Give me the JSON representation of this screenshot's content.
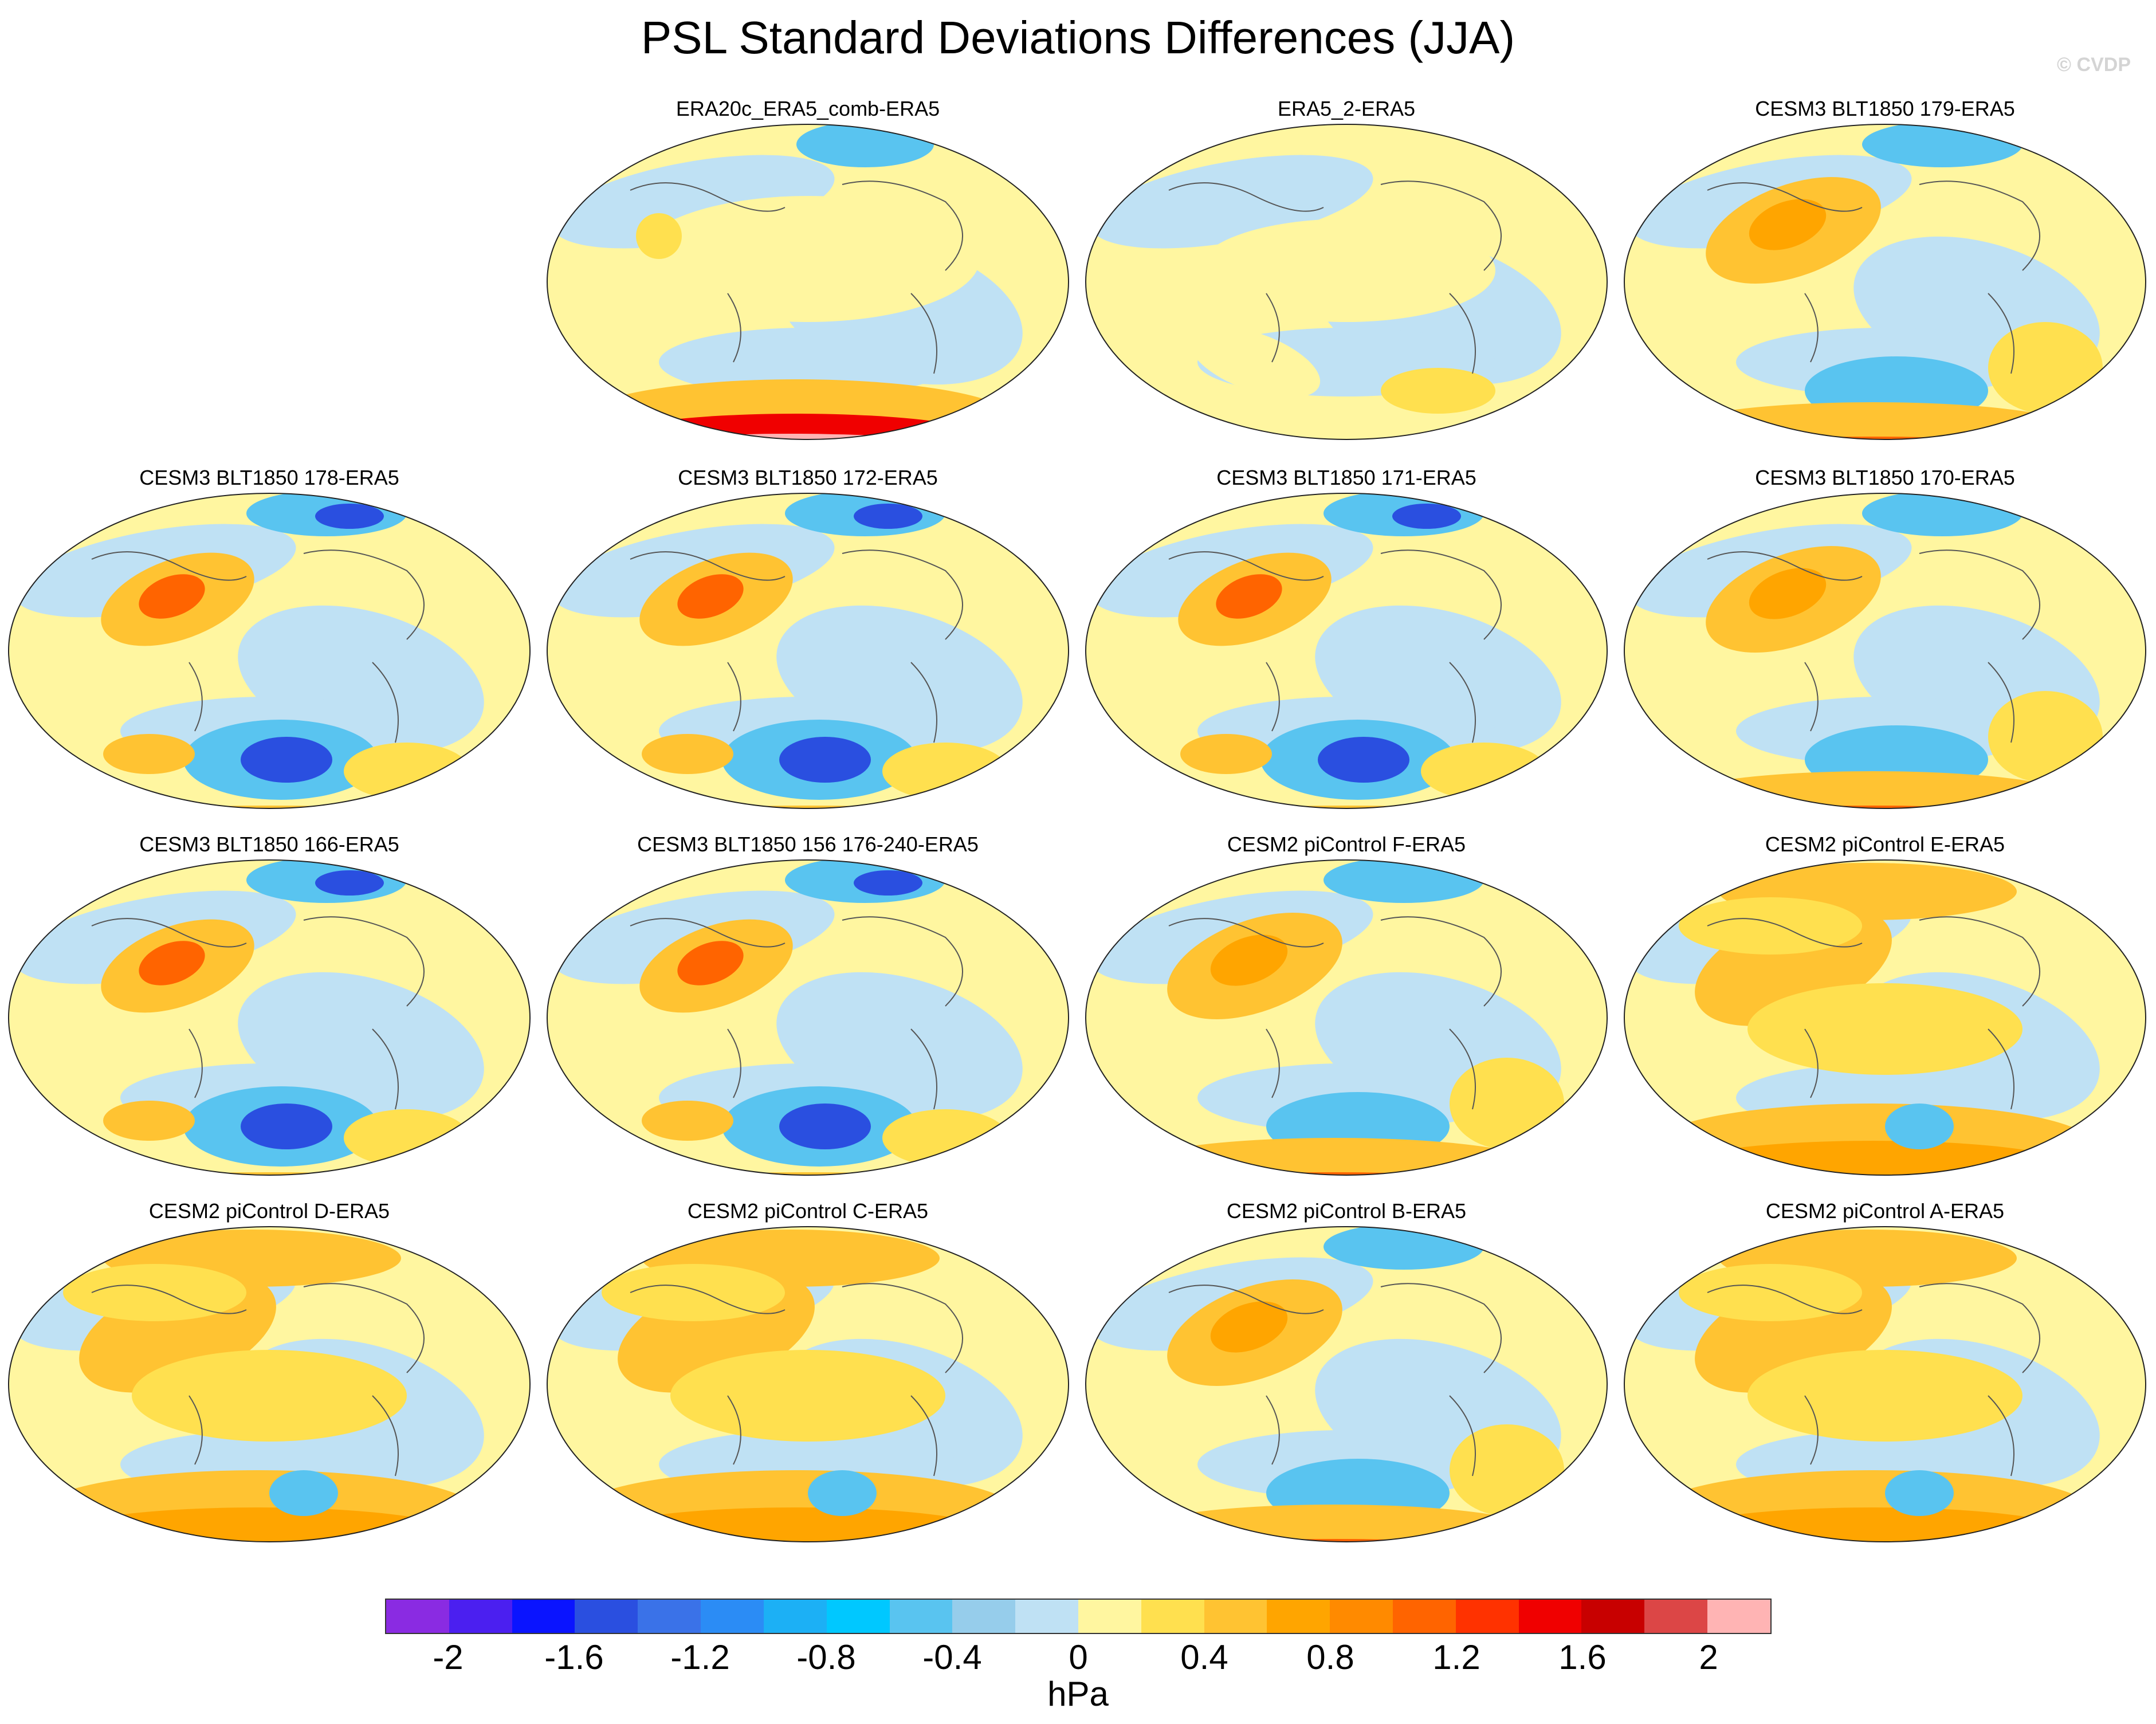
{
  "title": "PSL Standard Deviations Differences (JJA)",
  "credit": "© CVDP",
  "panels": [
    {
      "title": "ERA20c_ERA5_comb-ERA5",
      "pattern": "era20c"
    },
    {
      "title": "ERA5_2-ERA5",
      "pattern": "neutral"
    },
    {
      "title": "CESM3 BLT1850 179-ERA5",
      "pattern": "warm"
    },
    {
      "title": "CESM3 BLT1850 178-ERA5",
      "pattern": "cool"
    },
    {
      "title": "CESM3 BLT1850 172-ERA5",
      "pattern": "cool"
    },
    {
      "title": "CESM3 BLT1850 171-ERA5",
      "pattern": "cool"
    },
    {
      "title": "CESM3 BLT1850 170-ERA5",
      "pattern": "warm"
    },
    {
      "title": "CESM3 BLT1850 166-ERA5",
      "pattern": "cool"
    },
    {
      "title": "CESM3 BLT1850 156 176-240-ERA5",
      "pattern": "cool"
    },
    {
      "title": "CESM2 piControl F-ERA5",
      "pattern": "warm"
    },
    {
      "title": "CESM2 piControl E-ERA5",
      "pattern": "hot"
    },
    {
      "title": "CESM2 piControl D-ERA5",
      "pattern": "hot"
    },
    {
      "title": "CESM2 piControl C-ERA5",
      "pattern": "hot"
    },
    {
      "title": "CESM2 piControl B-ERA5",
      "pattern": "warm"
    },
    {
      "title": "CESM2 piControl A-ERA5",
      "pattern": "hot"
    }
  ],
  "colorbar": {
    "colors": [
      "#8a2be2",
      "#4b1ff0",
      "#0a14ff",
      "#2a4fe0",
      "#3a72e8",
      "#2b8cf5",
      "#1cb0f5",
      "#00c8ff",
      "#59c4f0",
      "#96cdeb",
      "#bfe1f4",
      "#fff6a0",
      "#ffe04f",
      "#ffc332",
      "#ffa500",
      "#ff8a00",
      "#ff6400",
      "#ff3200",
      "#f00000",
      "#c80000",
      "#dc4646",
      "#ffb4b4"
    ],
    "tick_labels": [
      "-2",
      "-1.6",
      "-1.2",
      "-0.8",
      "-0.4",
      "0",
      "0.4",
      "0.8",
      "1.2",
      "1.6",
      "2"
    ],
    "units": "hPa"
  }
}
